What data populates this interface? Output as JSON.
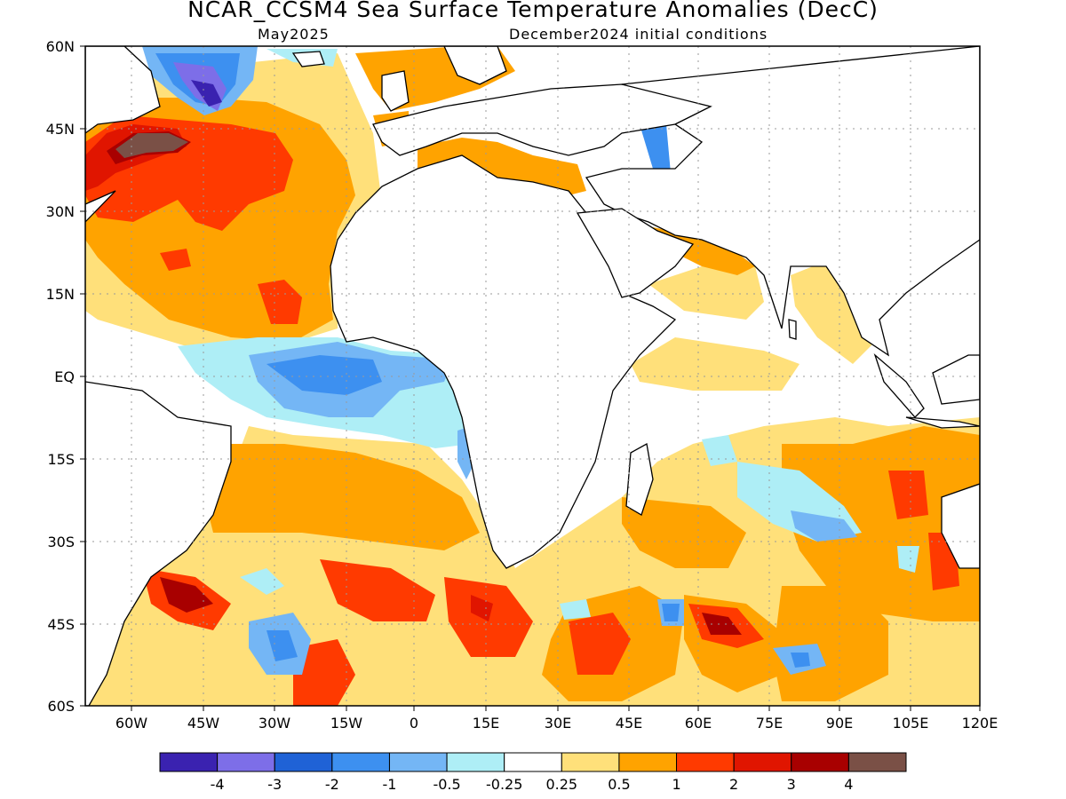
{
  "title": "NCAR_CCSM4 Sea Surface Temperature Anomalies (DecC)",
  "subtitle_left": "May2025",
  "subtitle_right": "December2024 initial conditions",
  "y_ticks": [
    "60N",
    "45N",
    "30N",
    "15N",
    "EQ",
    "15S",
    "30S",
    "45S",
    "60S"
  ],
  "x_ticks": [
    "60W",
    "45W",
    "30W",
    "15W",
    "0",
    "15E",
    "30E",
    "45E",
    "60E",
    "75E",
    "90E",
    "105E",
    "120E"
  ],
  "colorbar": {
    "colors": [
      "#3a22b0",
      "#7d6ee8",
      "#1f62d6",
      "#3d90f0",
      "#74b6f5",
      "#aeeef6",
      "#ffffff",
      "#ffe07a",
      "#ffa300",
      "#ff3a00",
      "#e01500",
      "#a80000",
      "#7a5046"
    ],
    "labels": [
      "-4",
      "-3",
      "-2",
      "-1",
      "-0.5",
      "-0.25",
      "0.25",
      "0.5",
      "1",
      "2",
      "3",
      "4"
    ]
  }
}
